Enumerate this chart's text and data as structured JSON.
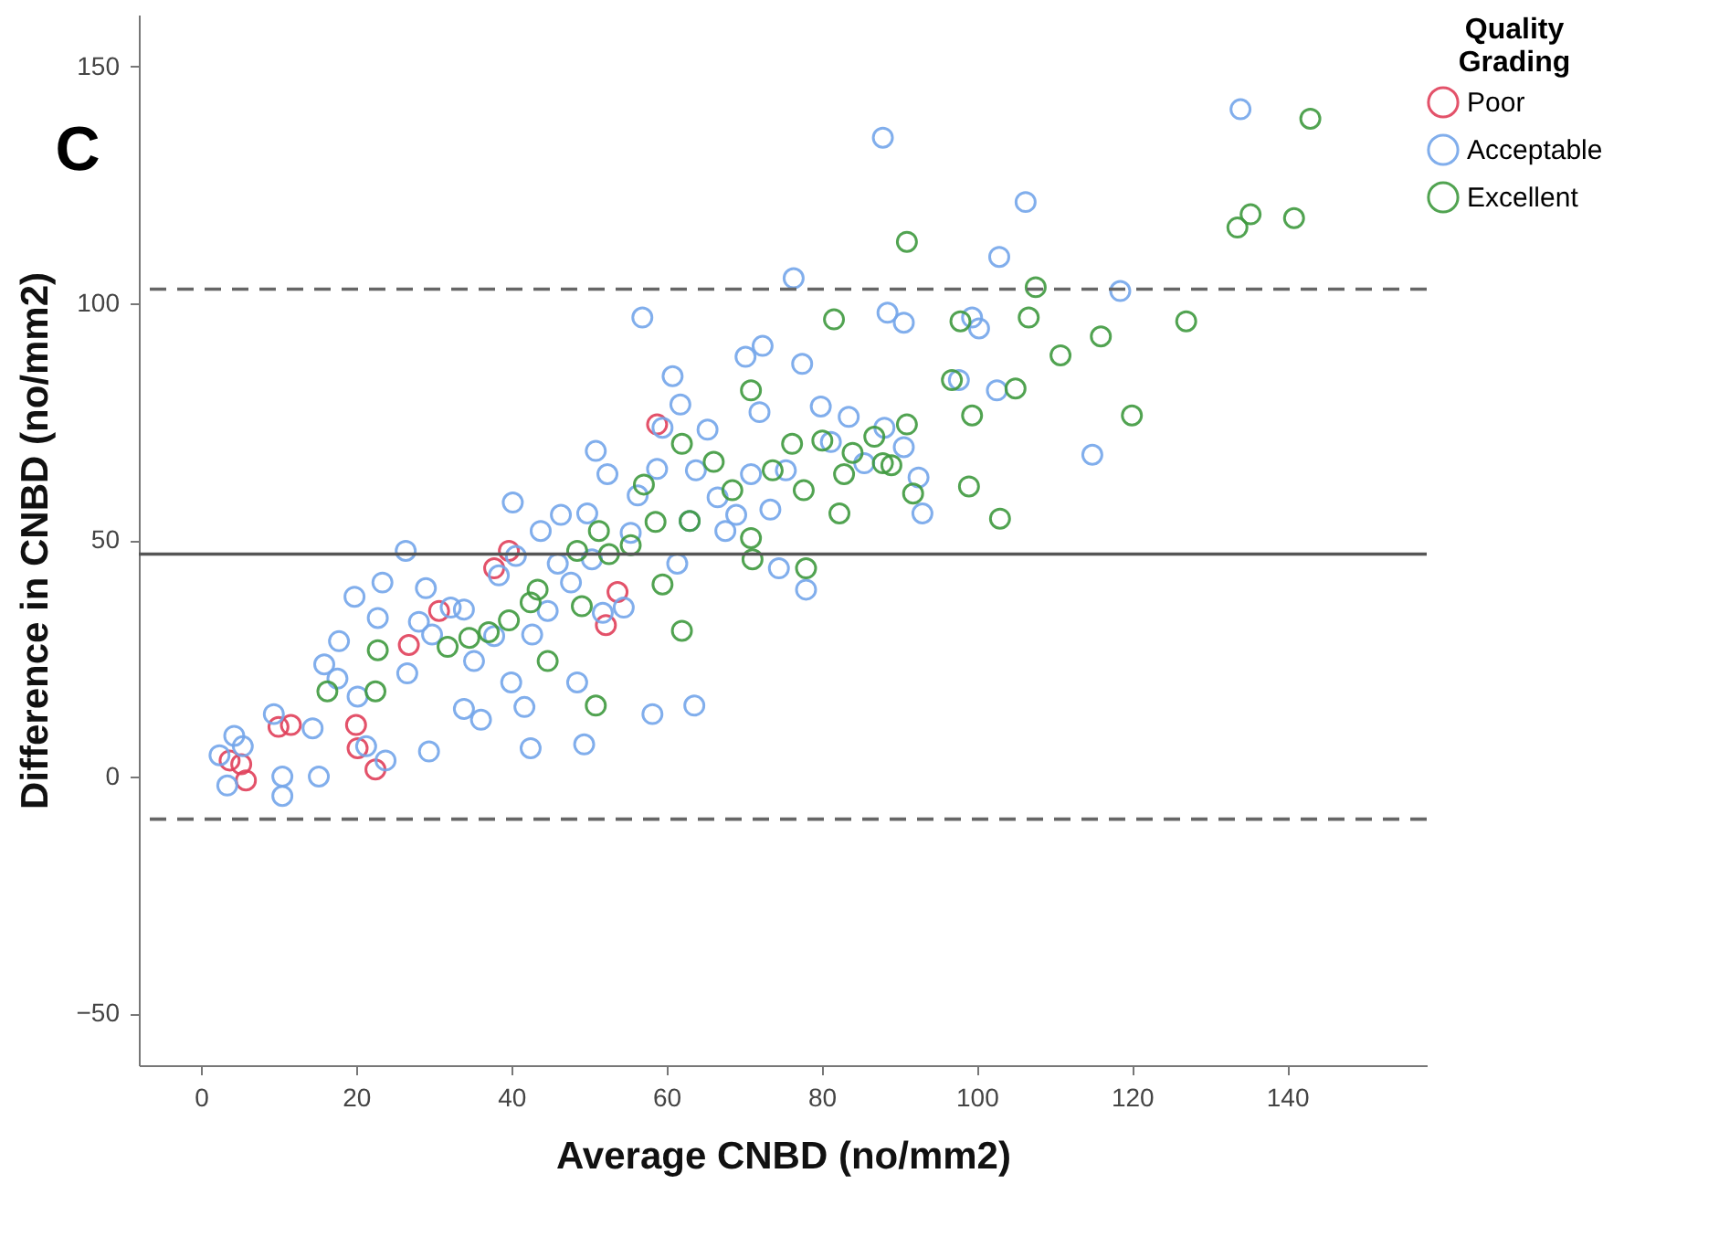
{
  "chart_data": {
    "type": "scatter",
    "title": "C",
    "xlabel": "Average CNBD (no/mm2)",
    "ylabel": "Difference in CNBD (no/mm2)",
    "legend_title": "Quality Grading",
    "legend": "top right",
    "marker": "circle",
    "grid": false,
    "xlim": [
      -8,
      158
    ],
    "xticks": [
      0,
      20,
      40,
      60,
      80,
      100,
      120,
      140
    ],
    "ylim": [
      -61,
      161
    ],
    "yticks": [
      -50,
      0,
      50,
      100,
      150
    ],
    "ref_lines": [
      {
        "axis": "y",
        "value": 47,
        "color": "#555555",
        "line_style": "solid"
      },
      {
        "axis": "y",
        "value": 103,
        "color": "#666666",
        "line_style": "dashed"
      },
      {
        "axis": "y",
        "value": -9,
        "color": "#666666",
        "line_style": "dashed"
      }
    ],
    "series": [
      {
        "name": "Poor",
        "color": "#e0405a",
        "x": [
          3.7,
          5.2,
          5.8,
          10,
          11.6,
          20,
          20.2,
          22.5,
          26.8,
          30.7,
          37.8,
          39.7,
          58.8,
          53.7,
          52.2
        ],
        "values": [
          3.4,
          2.6,
          -0.8,
          10.5,
          10.9,
          10.9,
          6,
          1.5,
          27.8,
          35,
          44,
          47.7,
          74.4,
          39,
          32
        ]
      },
      {
        "name": "Acceptable",
        "color": "#74a6ea",
        "x": [
          2.4,
          4.3,
          3.4,
          5.4,
          9.4,
          10.5,
          10.5,
          14.4,
          15.2,
          15.9,
          17.6,
          17.8,
          19.8,
          20.2,
          21.3,
          22.8,
          23.4,
          23.8,
          26.6,
          26.4,
          28.1,
          29,
          29.4,
          29.8,
          32.2,
          33.9,
          33.9,
          35.2,
          36.1,
          37.8,
          38.4,
          40,
          40.2,
          40.6,
          41.7,
          42.7,
          42.5,
          43.8,
          44.7,
          46,
          46.4,
          47.7,
          48.5,
          49.4,
          49.8,
          50.4,
          50.9,
          51.8,
          52.4,
          54.5,
          55.4,
          56.3,
          56.9,
          58.2,
          58.8,
          59.5,
          60.8,
          61.4,
          61.8,
          63,
          63.6,
          63.8,
          65.3,
          66.6,
          67.6,
          69,
          70.2,
          70.9,
          72,
          72.4,
          73.4,
          74.5,
          75.4,
          76.4,
          77.5,
          78,
          79.9,
          81.2,
          83.5,
          85.5,
          87.9,
          88.1,
          88.5,
          90.6,
          90.6,
          93,
          92.5,
          97.7,
          99.4,
          100.3,
          102.9,
          106.3,
          102.6,
          114.9,
          118.5,
          134
        ],
        "values": [
          4.5,
          8.6,
          -1.9,
          6.4,
          13.2,
          0,
          -4.1,
          10.2,
          0,
          23.7,
          20.7,
          28.6,
          38,
          16.9,
          6.4,
          33.5,
          41,
          3.4,
          21.8,
          47.7,
          32.7,
          39.8,
          5.3,
          30,
          35.7,
          35.3,
          14.3,
          24.4,
          12,
          29.7,
          42.5,
          19.9,
          57.9,
          46.6,
          14.7,
          30,
          6,
          51.9,
          35,
          45,
          55.3,
          41,
          19.9,
          6.8,
          55.6,
          45.9,
          68.8,
          34.6,
          63.9,
          35.7,
          51.5,
          59.4,
          97,
          13.2,
          65,
          73.7,
          84.6,
          45,
          78.6,
          54,
          15,
          64.7,
          73.3,
          59,
          51.9,
          55.3,
          88.7,
          63.9,
          77,
          91,
          56.4,
          44,
          64.7,
          105.3,
          87.2,
          39.5,
          78.2,
          70.7,
          76,
          66.2,
          135,
          73.7,
          98,
          95.9,
          69.6,
          55.6,
          63.2,
          83.8,
          97,
          94.7,
          109.8,
          121.4,
          81.6,
          68,
          102.6,
          141
        ]
      },
      {
        "name": "Excellent",
        "color": "#3f9a3f",
        "x": [
          22.8,
          16.3,
          22.5,
          31.8,
          34.6,
          37.1,
          39.7,
          42.5,
          43.4,
          44.7,
          48.5,
          49.1,
          50.9,
          52.6,
          55.4,
          51.3,
          57.1,
          58.6,
          62,
          63,
          59.5,
          62,
          66.1,
          68.5,
          70.9,
          70.9,
          71.1,
          73.7,
          76.2,
          77.7,
          78,
          81.6,
          80.1,
          82.3,
          82.9,
          84,
          86.8,
          87.9,
          91,
          91,
          89,
          91.8,
          96.8,
          97.9,
          99.4,
          99,
          103,
          105,
          106.7,
          107.6,
          110.8,
          116,
          120,
          127,
          133.6,
          135.3,
          140.9,
          143
        ],
        "values": [
          26.7,
          18,
          18,
          27.4,
          29.3,
          30.5,
          33,
          36.8,
          39.5,
          24.4,
          47.7,
          36,
          15,
          47,
          48.9,
          51.9,
          61.7,
          53.8,
          70.3,
          54,
          40.6,
          30.8,
          66.5,
          60.5,
          81.6,
          50.4,
          45.9,
          64.7,
          70.3,
          60.5,
          44,
          96.6,
          71,
          55.6,
          63.9,
          68.4,
          71.8,
          66.2,
          113,
          74.4,
          65.8,
          59.8,
          83.8,
          96.2,
          76.3,
          61.3,
          54.5,
          82,
          97,
          103.4,
          89,
          93,
          76.3,
          96.2,
          116,
          118.8,
          118,
          139
        ]
      }
    ]
  }
}
